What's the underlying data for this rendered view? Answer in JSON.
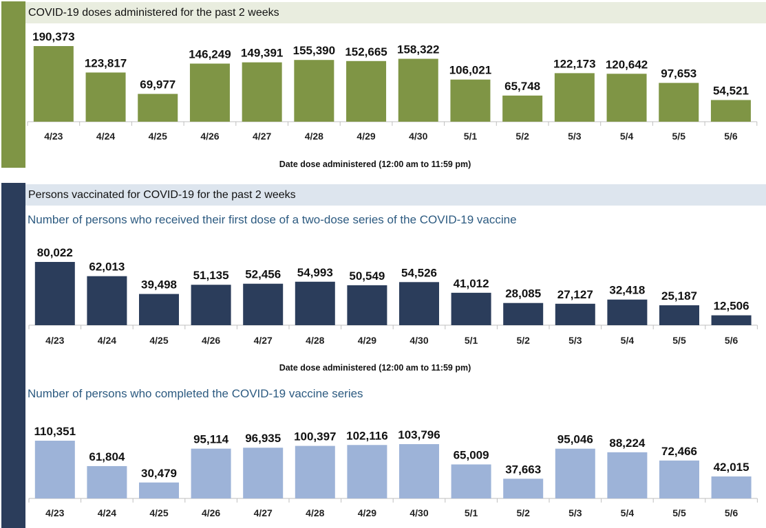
{
  "colors": {
    "doses_accent": "#7f9545",
    "persons_accent": "#2b3d5b",
    "doses_bar": "#7f9545",
    "first_dose_bar": "#2b3d5b",
    "completed_bar": "#9db3d8"
  },
  "section1": {
    "header": "COVID-19 doses administered for the past 2 weeks"
  },
  "section2": {
    "header": "Persons vaccinated for COVID-19 for the past 2 weeks",
    "subtitle_first": "Number of persons who received their first dose of a two-dose series of the COVID-19 vaccine",
    "subtitle_completed": "Number of persons who completed the COVID-19 vaccine series"
  },
  "chart_data": [
    {
      "type": "bar",
      "title": "COVID-19 doses administered for the past 2 weeks",
      "categories": [
        "4/23",
        "4/24",
        "4/25",
        "4/26",
        "4/27",
        "4/28",
        "4/29",
        "4/30",
        "5/1",
        "5/2",
        "5/3",
        "5/4",
        "5/5",
        "5/6"
      ],
      "values": [
        190373,
        123817,
        69977,
        146249,
        149391,
        155390,
        152665,
        158322,
        106021,
        65748,
        122173,
        120642,
        97653,
        54521
      ],
      "value_labels": [
        "190,373",
        "123,817",
        "69,977",
        "146,249",
        "149,391",
        "155,390",
        "152,665",
        "158,322",
        "106,021",
        "65,748",
        "122,173",
        "120,642",
        "97,653",
        "54,521"
      ],
      "xlabel": "Date dose administered (12:00 am to 11:59 pm)",
      "ylabel": "",
      "grid": false,
      "color": "#7f9545"
    },
    {
      "type": "bar",
      "title": "Number of persons who received their first dose of a two-dose series of the COVID-19 vaccine",
      "categories": [
        "4/23",
        "4/24",
        "4/25",
        "4/26",
        "4/27",
        "4/28",
        "4/29",
        "4/30",
        "5/1",
        "5/2",
        "5/3",
        "5/4",
        "5/5",
        "5/6"
      ],
      "values": [
        80022,
        62013,
        39498,
        51135,
        52456,
        54993,
        50549,
        54526,
        41012,
        28085,
        27127,
        32418,
        25187,
        12506
      ],
      "value_labels": [
        "80,022",
        "62,013",
        "39,498",
        "51,135",
        "52,456",
        "54,993",
        "50,549",
        "54,526",
        "41,012",
        "28,085",
        "27,127",
        "32,418",
        "25,187",
        "12,506"
      ],
      "xlabel": "Date dose administered (12:00 am to 11:59 pm)",
      "ylabel": "",
      "grid": false,
      "color": "#2b3d5b"
    },
    {
      "type": "bar",
      "title": "Number of persons who completed the COVID-19 vaccine series",
      "categories": [
        "4/23",
        "4/24",
        "4/25",
        "4/26",
        "4/27",
        "4/28",
        "4/29",
        "4/30",
        "5/1",
        "5/2",
        "5/3",
        "5/4",
        "5/5",
        "5/6"
      ],
      "values": [
        110351,
        61804,
        30479,
        95114,
        96935,
        100397,
        102116,
        103796,
        65009,
        37663,
        95046,
        88224,
        72466,
        42015
      ],
      "value_labels": [
        "110,351",
        "61,804",
        "30,479",
        "95,114",
        "96,935",
        "100,397",
        "102,116",
        "103,796",
        "65,009",
        "37,663",
        "95,046",
        "88,224",
        "72,466",
        "42,015"
      ],
      "xlabel": "",
      "ylabel": "",
      "grid": false,
      "color": "#9db3d8"
    }
  ]
}
